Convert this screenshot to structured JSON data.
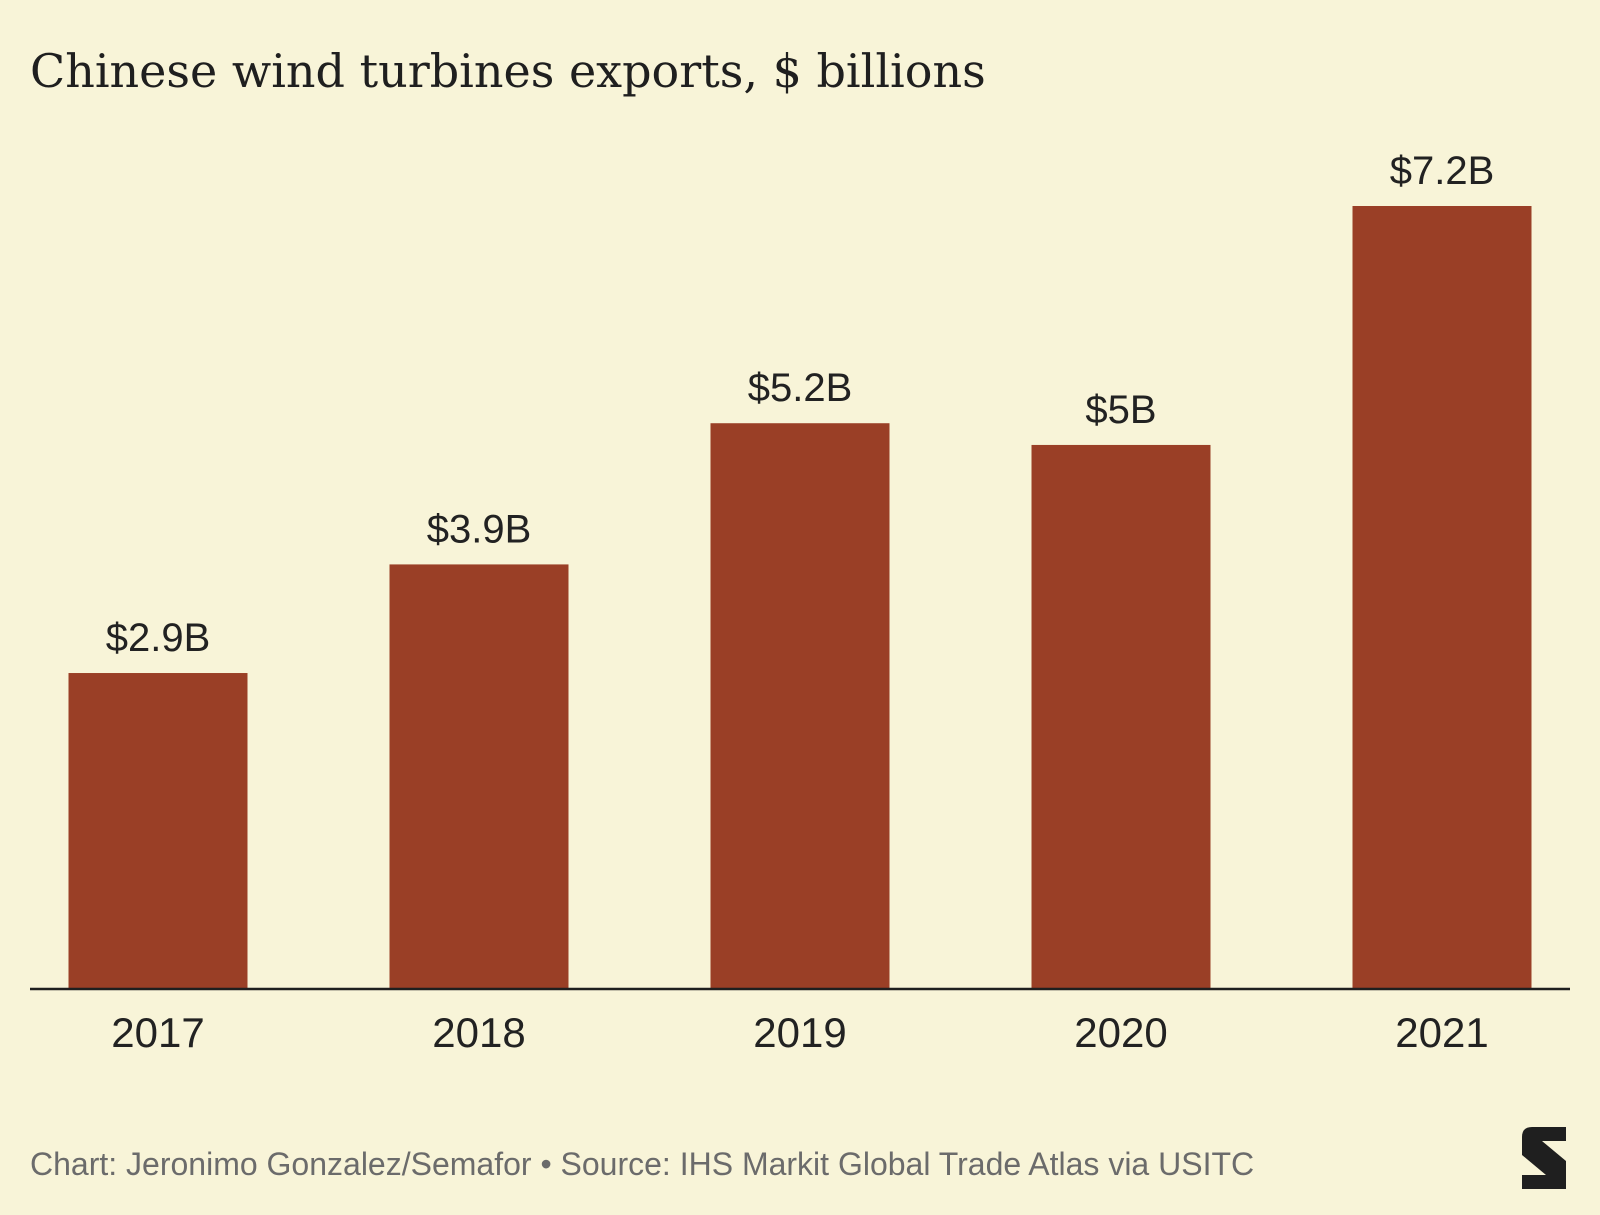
{
  "chart_data": {
    "type": "bar",
    "title": "Chinese wind turbines exports, $ billions",
    "categories": [
      "2017",
      "2018",
      "2019",
      "2020",
      "2021"
    ],
    "values": [
      2.9,
      3.9,
      5.2,
      5.0,
      7.2
    ],
    "data_labels": [
      "$2.9B",
      "$3.9B",
      "$5.2B",
      "$5B",
      "$7.2B"
    ],
    "xlabel": "",
    "ylabel": "",
    "ylim": [
      0,
      7.2
    ],
    "grid": false,
    "legend": "none",
    "bar_color": "#9a3f26"
  },
  "footer": {
    "credit": "Chart: Jeronimo Gonzalez/Semafor • Source: IHS Markit Global Trade Atlas via USITC"
  },
  "colors": {
    "background": "#f8f4d8",
    "axis": "#1f1f1f",
    "text": "#222222",
    "footer": "#6b6b6b"
  },
  "logo": {
    "icon": "semafor-s-logo-icon"
  }
}
